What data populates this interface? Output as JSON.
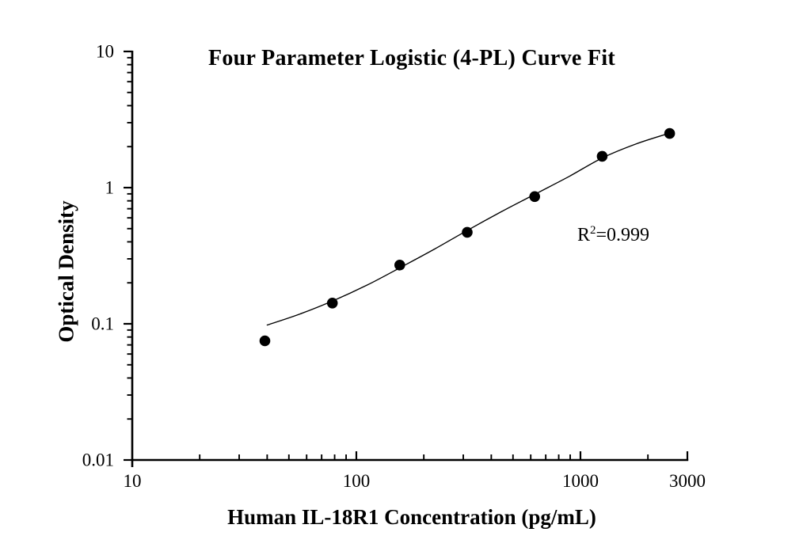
{
  "chart_data": {
    "type": "scatter",
    "title": "Four Parameter Logistic (4-PL) Curve Fit",
    "xlabel": "Human IL-18R1 Concentration (pg/mL)",
    "ylabel": "Optical Density",
    "x_scale": "log",
    "y_scale": "log",
    "xlim": [
      10,
      3000
    ],
    "ylim": [
      0.01,
      10
    ],
    "grid": false,
    "legend": "none",
    "background": "#ffffff",
    "axis_color": "#000000",
    "text_color": "#000000",
    "x_ticks": {
      "values": [
        10,
        100,
        1000,
        3000
      ],
      "labels": [
        "10",
        "100",
        "1000",
        "3000"
      ]
    },
    "y_ticks": {
      "values": [
        10,
        1,
        0.1,
        0.01
      ],
      "labels": [
        "10",
        "1",
        "0.1",
        "0.01"
      ]
    },
    "annotation": {
      "base": "R",
      "sup": "2",
      "rest": "=0.999",
      "r_squared": 0.999
    },
    "series": [
      {
        "name": "standard data points",
        "type": "scatter",
        "marker": "filled-circle",
        "color": "#000000",
        "x": [
          39.06,
          78.13,
          156.25,
          312.5,
          625,
          1250,
          2500
        ],
        "y": [
          0.075,
          0.142,
          0.27,
          0.47,
          0.86,
          1.7,
          2.5
        ]
      },
      {
        "name": "4-PL fit curve",
        "type": "line",
        "color": "#000000",
        "x": [
          40,
          56,
          79,
          112,
          158,
          224,
          316,
          447,
          631,
          891,
          1259,
          1778,
          2512
        ],
        "y": [
          0.098,
          0.118,
          0.148,
          0.193,
          0.26,
          0.355,
          0.49,
          0.67,
          0.9,
          1.21,
          1.66,
          2.1,
          2.52
        ]
      }
    ]
  }
}
